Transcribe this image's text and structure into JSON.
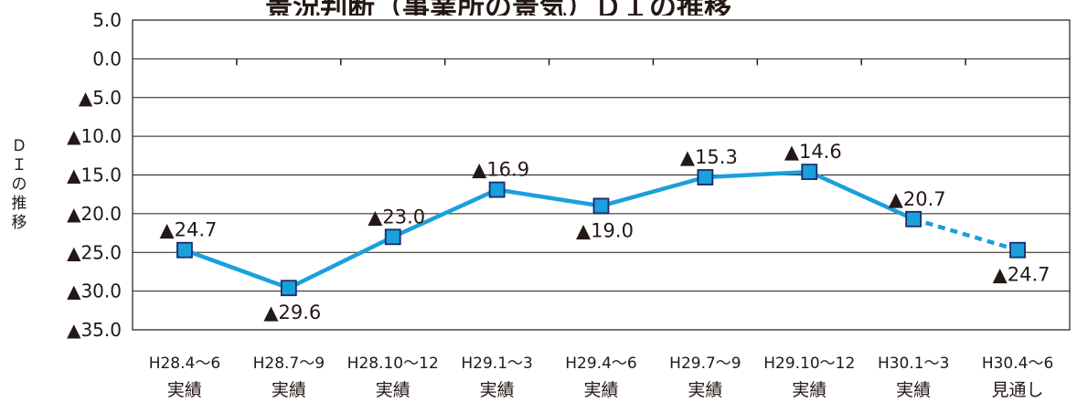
{
  "chart_data": {
    "type": "line",
    "title": "景況判断（事業所の景気）ＤＩの推移",
    "ylabel": "ＤＩの推移",
    "xlabel": "",
    "ylim": [
      -35,
      5
    ],
    "yticks": [
      5,
      0,
      -5,
      -10,
      -15,
      -20,
      -25,
      -30,
      -35
    ],
    "ytick_labels": [
      "5.0",
      "0.0",
      "▲5.0",
      "▲10.0",
      "▲15.0",
      "▲20.0",
      "▲25.0",
      "▲30.0",
      "▲35.0"
    ],
    "categories": [
      {
        "period": "H28.4～6",
        "kind": "実績"
      },
      {
        "period": "H28.7～9",
        "kind": "実績"
      },
      {
        "period": "H28.10～12",
        "kind": "実績"
      },
      {
        "period": "H29.1～3",
        "kind": "実績"
      },
      {
        "period": "H29.4～6",
        "kind": "実績"
      },
      {
        "period": "H29.7～9",
        "kind": "実績"
      },
      {
        "period": "H29.10～12",
        "kind": "実績"
      },
      {
        "period": "H30.1～3",
        "kind": "実績"
      },
      {
        "period": "H30.4～6",
        "kind": "見通し"
      }
    ],
    "values": [
      -24.7,
      -29.6,
      -23.0,
      -16.9,
      -19.0,
      -15.3,
      -14.6,
      -20.7,
      -24.7
    ],
    "data_labels": [
      "▲24.7",
      "▲29.6",
      "▲23.0",
      "▲16.9",
      "▲19.0",
      "▲15.3",
      "▲14.6",
      "▲20.7",
      "▲24.7"
    ],
    "label_positions": [
      "above",
      "below",
      "above",
      "above",
      "below",
      "above",
      "above",
      "above",
      "below"
    ],
    "forecast_from_index": 7,
    "grid": true,
    "colors": {
      "line": "#1aa0db",
      "marker_fill": "#1aa0db",
      "marker_edge": "#1a2a6c",
      "grid": "#231815",
      "text": "#231815"
    }
  }
}
